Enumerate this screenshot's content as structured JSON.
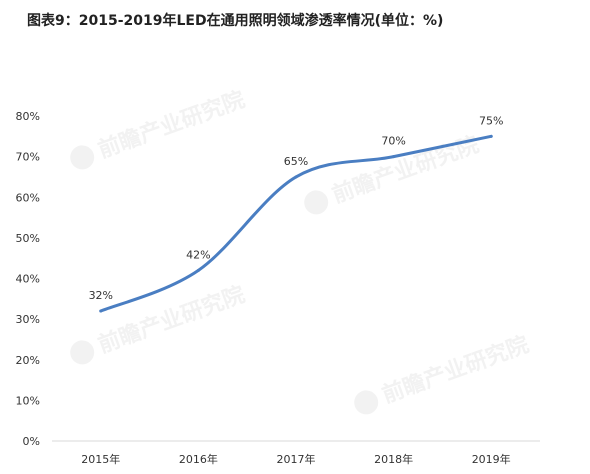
{
  "title": "图表9：2015-2019年LED在通用照明领域渗透率情况(单位：%)",
  "watermark": "前瞻产业研究院",
  "chart_data": {
    "type": "line",
    "title": "图表9：2015-2019年LED在通用照明领域渗透率情况(单位：%)",
    "categories": [
      "2015年",
      "2016年",
      "2017年",
      "2018年",
      "2019年"
    ],
    "series": [
      {
        "values": [
          32,
          42,
          65,
          70,
          75
        ],
        "labels": [
          "32%",
          "42%",
          "65%",
          "70%",
          "75%"
        ],
        "color": "#4a7ec2"
      }
    ],
    "ylim": [
      0,
      80
    ],
    "yticks": [
      0,
      10,
      20,
      30,
      40,
      50,
      60,
      70,
      80
    ],
    "ytick_labels": [
      "0%",
      "10%",
      "20%",
      "30%",
      "40%",
      "50%",
      "60%",
      "70%",
      "80%"
    ],
    "grid": false,
    "smooth": true,
    "axis_color": "#d9d9d9",
    "label_color": "#333333"
  }
}
